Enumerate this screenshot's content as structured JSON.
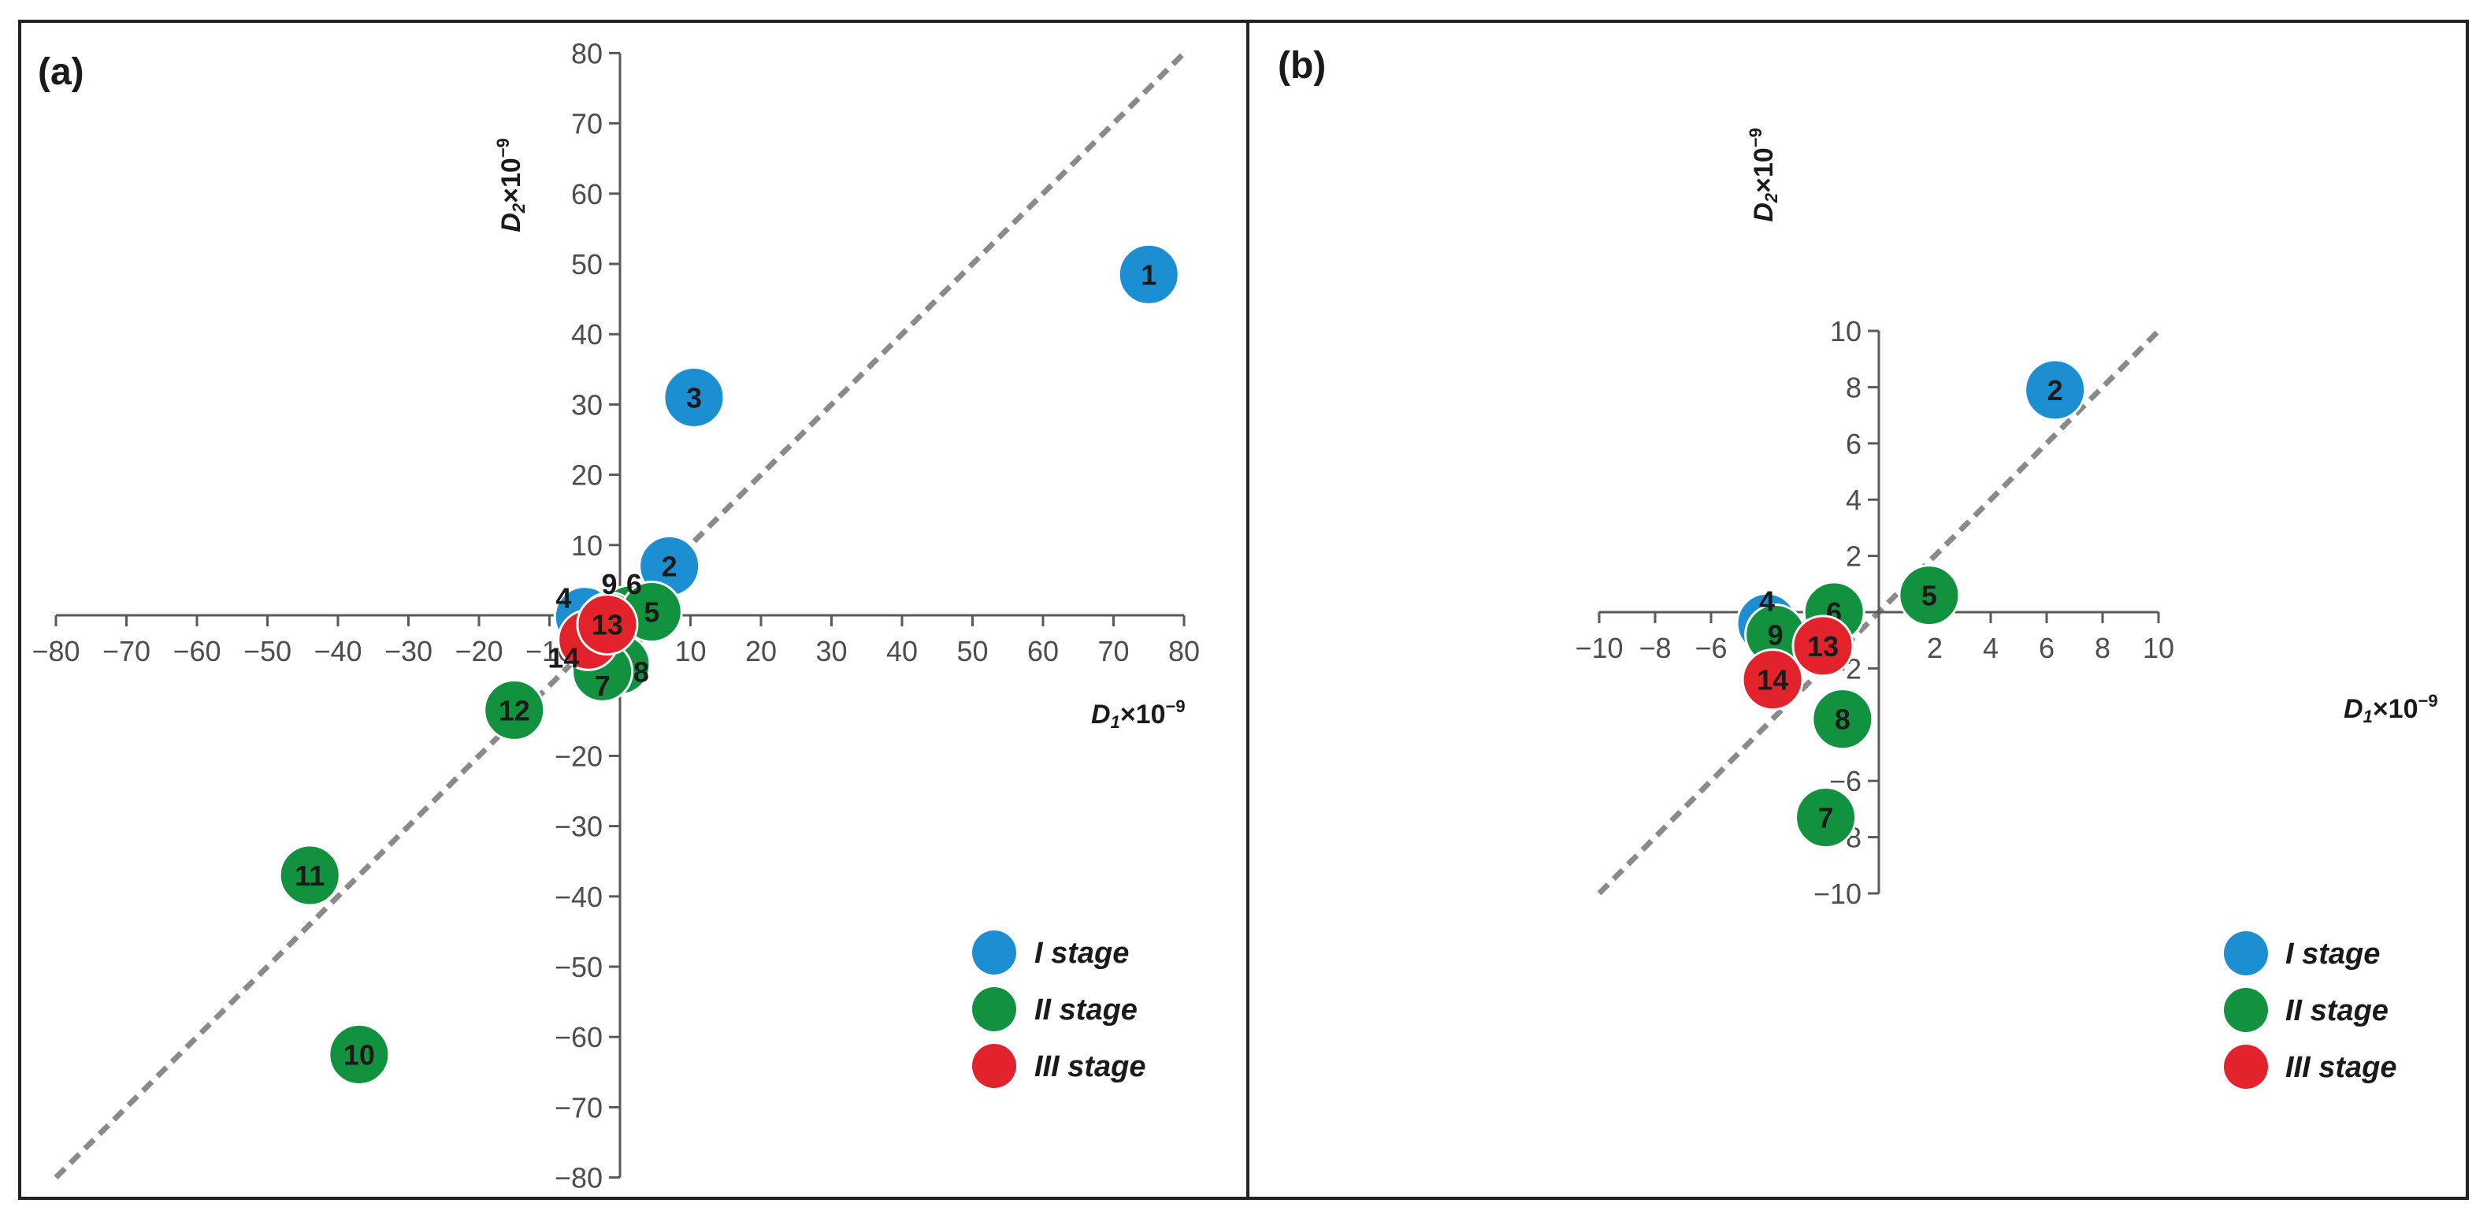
{
  "chart_data": [
    {
      "type": "scatter",
      "panel_label": "(a)",
      "xlabel": "D1×10⁻⁹",
      "ylabel": "D2×10⁻⁹",
      "xlabel_main": "D",
      "xlabel_sub": "1",
      "xlabel_rest": "×10",
      "xlabel_sup": "−9",
      "ylabel_main": "D",
      "ylabel_sub": "2",
      "ylabel_rest": "×10",
      "ylabel_sup": "−9",
      "xlim": [
        -80,
        80
      ],
      "ylim": [
        -80,
        80
      ],
      "x_ticks": [
        -80,
        -70,
        -60,
        -50,
        -40,
        -30,
        -20,
        -10,
        10,
        20,
        30,
        40,
        50,
        60,
        70,
        80
      ],
      "x_tick_labels": [
        "−80",
        "−70",
        "−60",
        "−50",
        "−40",
        "−30",
        "−20",
        "−10",
        "10",
        "20",
        "30",
        "40",
        "50",
        "60",
        "70",
        "80"
      ],
      "y_ticks": [
        80,
        70,
        60,
        50,
        40,
        30,
        20,
        10,
        -20,
        -30,
        -40,
        -50,
        -60,
        -70,
        -80
      ],
      "y_tick_labels": [
        "80",
        "70",
        "60",
        "50",
        "40",
        "30",
        "20",
        "10",
        "−20",
        "−30",
        "−40",
        "−50",
        "−60",
        "−70",
        "−80"
      ],
      "reference_line": "y = x",
      "legend_position": "bottom-right",
      "legend": [
        {
          "label": "I stage",
          "color": "#1b8fd2"
        },
        {
          "label": "II stage",
          "color": "#12913f"
        },
        {
          "label": "III stage",
          "color": "#e3232b"
        }
      ],
      "points": [
        {
          "id": "1",
          "label": "1",
          "x": 75,
          "y": 48.5,
          "stage": 1
        },
        {
          "id": "3",
          "label": "3",
          "x": 10.5,
          "y": 31,
          "stage": 1
        },
        {
          "id": "2",
          "label": "2",
          "x": 7,
          "y": 7,
          "stage": 1
        },
        {
          "id": "4",
          "label": "4",
          "x": -5,
          "y": -0.2,
          "stage": 1
        },
        {
          "id": "6",
          "label": "",
          "x": 1.5,
          "y": 0,
          "stage": 2
        },
        {
          "id": "9",
          "label": "",
          "x": -1.5,
          "y": -1,
          "stage": 2
        },
        {
          "id": "5",
          "label": "5",
          "x": 4.5,
          "y": 0.5,
          "stage": 2
        },
        {
          "id": "8",
          "label": "",
          "x": 0,
          "y": -7,
          "stage": 2
        },
        {
          "id": "7",
          "label": "",
          "x": -2.5,
          "y": -8,
          "stage": 2
        },
        {
          "id": "12",
          "label": "12",
          "x": -15,
          "y": -13.5,
          "stage": 2
        },
        {
          "id": "11",
          "label": "11",
          "x": -44,
          "y": -37,
          "stage": 2
        },
        {
          "id": "10",
          "label": "10",
          "x": -37,
          "y": -62.5,
          "stage": 2
        },
        {
          "id": "14",
          "label": "",
          "x": -4.5,
          "y": -3.5,
          "stage": 3
        },
        {
          "id": "13",
          "label": "13",
          "x": -1.8,
          "y": -1.3,
          "stage": 3
        }
      ],
      "outer_labels": [
        {
          "text": "4",
          "x": -8,
          "y": 2.5
        },
        {
          "text": "9",
          "x": -1.5,
          "y": 4.5
        },
        {
          "text": "6",
          "x": 2,
          "y": 4.5
        },
        {
          "text": "14",
          "x": -8,
          "y": -6
        },
        {
          "text": "7",
          "x": -2.5,
          "y": -10
        },
        {
          "text": "8",
          "x": 3,
          "y": -8
        }
      ]
    },
    {
      "type": "scatter",
      "panel_label": "(b)",
      "xlabel": "D1×10⁻⁹",
      "ylabel": "D2×10⁻⁹",
      "xlabel_main": "D",
      "xlabel_sub": "1",
      "xlabel_rest": "×10",
      "xlabel_sup": "−9",
      "ylabel_main": "D",
      "ylabel_sub": "2",
      "ylabel_rest": "×10",
      "ylabel_sup": "−9",
      "xlim": [
        -10,
        10
      ],
      "ylim": [
        -10,
        10
      ],
      "x_ticks": [
        -10,
        -8,
        -6,
        2,
        4,
        6,
        8,
        10
      ],
      "x_tick_labels": [
        "−10",
        "−8",
        "−6",
        "2",
        "4",
        "6",
        "8",
        "10"
      ],
      "y_ticks": [
        10,
        8,
        6,
        4,
        2,
        -2,
        -6,
        -8,
        -10
      ],
      "y_tick_labels": [
        "10",
        "8",
        "6",
        "4",
        "2",
        "−2",
        "−6",
        "−8",
        "−10"
      ],
      "reference_line": "y = x",
      "legend_position": "bottom-right",
      "legend": [
        {
          "label": "I stage",
          "color": "#1b8fd2"
        },
        {
          "label": "II stage",
          "color": "#12913f"
        },
        {
          "label": "III stage",
          "color": "#e3232b"
        }
      ],
      "points": [
        {
          "id": "2",
          "label": "2",
          "x": 6.3,
          "y": 7.9,
          "stage": 1
        },
        {
          "id": "4",
          "label": "",
          "x": -4,
          "y": -0.4,
          "stage": 1
        },
        {
          "id": "5",
          "label": "5",
          "x": 1.8,
          "y": 0.6,
          "stage": 2
        },
        {
          "id": "6",
          "label": "6",
          "x": -1.6,
          "y": 0,
          "stage": 2
        },
        {
          "id": "9",
          "label": "9",
          "x": -3.7,
          "y": -0.8,
          "stage": 2
        },
        {
          "id": "13",
          "label": "13",
          "x": -2,
          "y": -1.2,
          "stage": 3
        },
        {
          "id": "14",
          "label": "14",
          "x": -3.8,
          "y": -2.4,
          "stage": 3
        },
        {
          "id": "8",
          "label": "8",
          "x": -1.3,
          "y": -3.8,
          "stage": 2
        },
        {
          "id": "7",
          "label": "7",
          "x": -1.9,
          "y": -7.3,
          "stage": 2
        }
      ],
      "outer_labels": [
        {
          "text": "4",
          "x": -4,
          "y": 0.4
        }
      ]
    }
  ]
}
